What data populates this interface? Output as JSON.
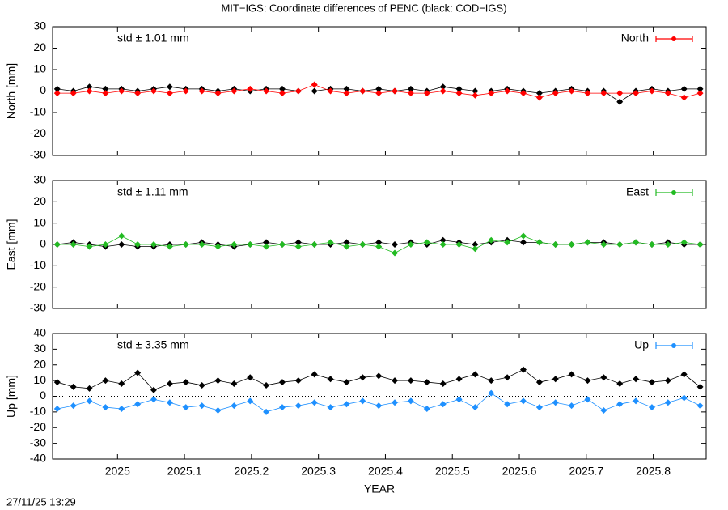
{
  "title": "MIT−IGS: Coordinate differences of PENC (black: COD−IGS)",
  "footer": "27/11/25 13:29",
  "chart_data": [
    {
      "type": "line",
      "ylabel": "North [mm]",
      "annotation": "std ± 1.01 mm",
      "legend": "top right",
      "xlim": [
        2024.903,
        2025.879
      ],
      "ylim": [
        -30,
        30
      ],
      "yticks": [
        -30,
        -20,
        -10,
        0,
        10,
        20,
        30
      ],
      "x": [
        2024.91,
        2024.934,
        2024.958,
        2024.982,
        2025.006,
        2025.03,
        2025.054,
        2025.078,
        2025.102,
        2025.126,
        2025.15,
        2025.174,
        2025.198,
        2025.222,
        2025.246,
        2025.27,
        2025.294,
        2025.318,
        2025.342,
        2025.366,
        2025.39,
        2025.414,
        2025.438,
        2025.462,
        2025.486,
        2025.51,
        2025.534,
        2025.558,
        2025.582,
        2025.606,
        2025.63,
        2025.654,
        2025.678,
        2025.702,
        2025.726,
        2025.75,
        2025.774,
        2025.798,
        2025.822,
        2025.846,
        2025.87
      ],
      "series": [
        {
          "color": "#000000",
          "values": [
            1,
            0,
            2,
            1,
            1,
            0,
            1,
            2,
            1,
            1,
            0,
            1,
            0,
            1,
            1,
            0,
            0,
            1,
            1,
            0,
            1,
            0,
            1,
            0,
            2,
            1,
            0,
            0,
            1,
            0,
            -1,
            0,
            1,
            0,
            0,
            -5,
            0,
            1,
            0,
            1,
            1
          ]
        },
        {
          "name": "North",
          "color": "#ff0000",
          "values": [
            -1,
            -1,
            0,
            -1,
            0,
            -1,
            0,
            -1,
            0,
            0,
            -1,
            0,
            1,
            0,
            -1,
            0,
            3,
            0,
            -1,
            0,
            -1,
            0,
            -1,
            -1,
            0,
            -1,
            -2,
            -1,
            0,
            -1,
            -3,
            -1,
            0,
            -1,
            -1,
            -1,
            -1,
            0,
            -1,
            -3,
            -1
          ]
        }
      ]
    },
    {
      "type": "line",
      "ylabel": "East [mm]",
      "annotation": "std ± 1.11 mm",
      "legend": "top right",
      "xlim": [
        2024.903,
        2025.879
      ],
      "ylim": [
        -30,
        30
      ],
      "yticks": [
        -30,
        -20,
        -10,
        0,
        10,
        20,
        30
      ],
      "x": [
        2024.91,
        2024.934,
        2024.958,
        2024.982,
        2025.006,
        2025.03,
        2025.054,
        2025.078,
        2025.102,
        2025.126,
        2025.15,
        2025.174,
        2025.198,
        2025.222,
        2025.246,
        2025.27,
        2025.294,
        2025.318,
        2025.342,
        2025.366,
        2025.39,
        2025.414,
        2025.438,
        2025.462,
        2025.486,
        2025.51,
        2025.534,
        2025.558,
        2025.582,
        2025.606,
        2025.63,
        2025.654,
        2025.678,
        2025.702,
        2025.726,
        2025.75,
        2025.774,
        2025.798,
        2025.822,
        2025.846,
        2025.87
      ],
      "series": [
        {
          "color": "#000000",
          "values": [
            0,
            1,
            0,
            -1,
            0,
            -1,
            -1,
            0,
            0,
            1,
            0,
            -1,
            0,
            1,
            0,
            1,
            0,
            0,
            1,
            0,
            1,
            0,
            1,
            0,
            2,
            1,
            0,
            1,
            2,
            1,
            1,
            0,
            0,
            1,
            1,
            0,
            1,
            0,
            1,
            0,
            0
          ]
        },
        {
          "name": "East",
          "color": "#22bb22",
          "values": [
            0,
            0,
            -1,
            0,
            4,
            0,
            0,
            -1,
            0,
            0,
            -1,
            0,
            0,
            -1,
            0,
            -1,
            0,
            1,
            -1,
            0,
            -1,
            -4,
            0,
            1,
            0,
            0,
            -2,
            2,
            1,
            4,
            1,
            0,
            0,
            1,
            0,
            0,
            1,
            0,
            0,
            1,
            0
          ]
        }
      ]
    },
    {
      "type": "line",
      "ylabel": "Up [mm]",
      "annotation": "std ± 3.35 mm",
      "legend": "top right",
      "zero_line": true,
      "xlabel": "YEAR",
      "xticks": [
        2025,
        2025.1,
        2025.2,
        2025.3,
        2025.4,
        2025.5,
        2025.6,
        2025.7,
        2025.8
      ],
      "xlim": [
        2024.903,
        2025.879
      ],
      "ylim": [
        -40,
        40
      ],
      "yticks": [
        -40,
        -30,
        -20,
        -10,
        0,
        10,
        20,
        30,
        40
      ],
      "x": [
        2024.91,
        2024.934,
        2024.958,
        2024.982,
        2025.006,
        2025.03,
        2025.054,
        2025.078,
        2025.102,
        2025.126,
        2025.15,
        2025.174,
        2025.198,
        2025.222,
        2025.246,
        2025.27,
        2025.294,
        2025.318,
        2025.342,
        2025.366,
        2025.39,
        2025.414,
        2025.438,
        2025.462,
        2025.486,
        2025.51,
        2025.534,
        2025.558,
        2025.582,
        2025.606,
        2025.63,
        2025.654,
        2025.678,
        2025.702,
        2025.726,
        2025.75,
        2025.774,
        2025.798,
        2025.822,
        2025.846,
        2025.87
      ],
      "series": [
        {
          "color": "#000000",
          "values": [
            9,
            6,
            5,
            10,
            8,
            15,
            4,
            8,
            9,
            7,
            10,
            8,
            12,
            7,
            9,
            10,
            14,
            11,
            9,
            12,
            13,
            10,
            10,
            9,
            8,
            11,
            14,
            10,
            12,
            17,
            9,
            11,
            14,
            10,
            12,
            8,
            11,
            9,
            10,
            14,
            6
          ]
        },
        {
          "name": "Up",
          "color": "#1e90ff",
          "values": [
            -8,
            -6,
            -3,
            -7,
            -8,
            -5,
            -2,
            -4,
            -7,
            -6,
            -9,
            -6,
            -3,
            -10,
            -7,
            -6,
            -4,
            -7,
            -5,
            -3,
            -6,
            -4,
            -3,
            -8,
            -5,
            -2,
            -7,
            2,
            -5,
            -3,
            -7,
            -4,
            -6,
            -2,
            -9,
            -5,
            -3,
            -7,
            -4,
            -1,
            -6
          ]
        }
      ]
    }
  ]
}
